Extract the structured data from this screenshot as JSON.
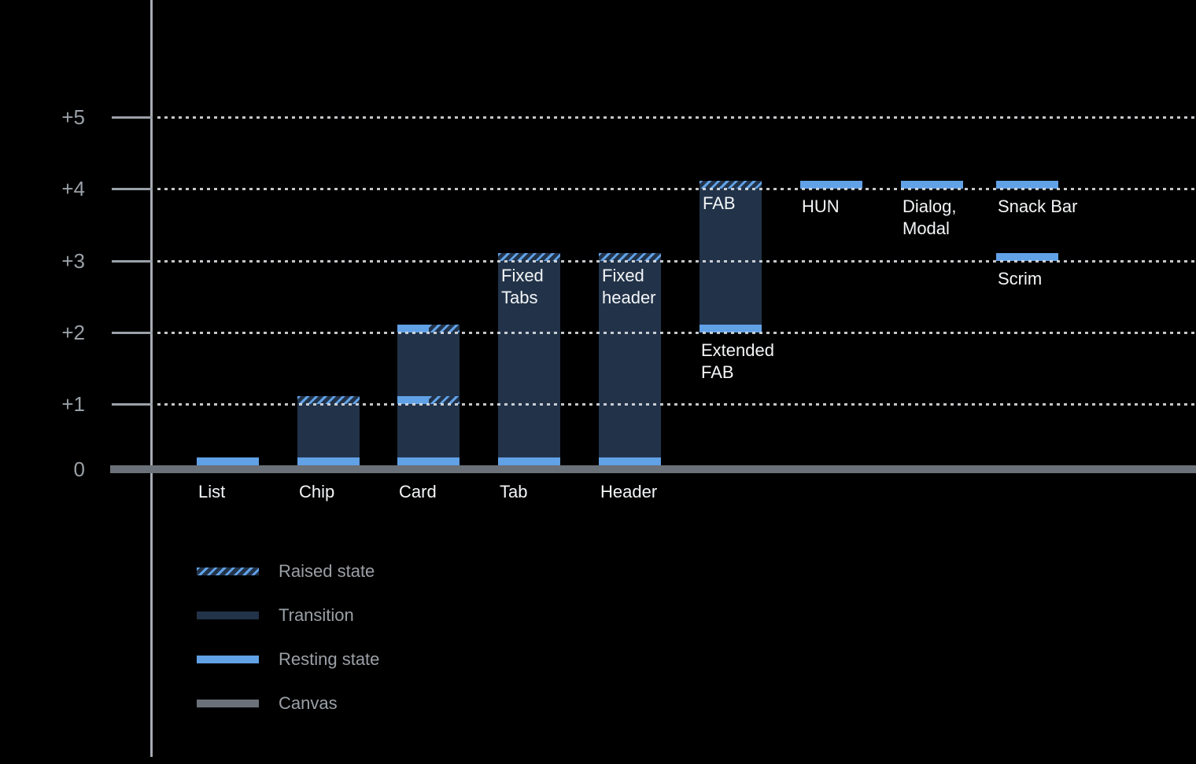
{
  "chart_data": {
    "type": "bar",
    "title": "",
    "xlabel": "",
    "ylabel": "",
    "ylim": [
      0,
      5
    ],
    "grid": "dotted horizontal gridlines at +1 through +5",
    "legend_position": "bottom-left",
    "yticks": [
      {
        "label": "+5",
        "level": 5
      },
      {
        "label": "+4",
        "level": 4
      },
      {
        "label": "+3",
        "level": 3
      },
      {
        "label": "+2",
        "level": 2
      },
      {
        "label": "+1",
        "level": 1
      },
      {
        "label": "0",
        "level": 0
      }
    ],
    "components": [
      {
        "name": "list",
        "axis_label": "List",
        "elements": [
          {
            "type": "resting",
            "level": 0
          }
        ]
      },
      {
        "name": "chip",
        "axis_label": "Chip",
        "elements": [
          {
            "type": "transition",
            "from": 0,
            "to": 1
          },
          {
            "type": "resting",
            "level": 0
          },
          {
            "type": "raised",
            "level": 1
          }
        ]
      },
      {
        "name": "card",
        "axis_label": "Card",
        "elements": [
          {
            "type": "transition",
            "from": 0,
            "to": 2
          },
          {
            "type": "resting",
            "level": 0
          },
          {
            "type": "resting_raised",
            "level": 1
          },
          {
            "type": "resting_raised",
            "level": 2
          }
        ]
      },
      {
        "name": "tab",
        "axis_label": "Tab",
        "top_label": "Fixed\nTabs",
        "elements": [
          {
            "type": "transition",
            "from": 0,
            "to": 3
          },
          {
            "type": "resting",
            "level": 0
          },
          {
            "type": "raised",
            "level": 3
          }
        ]
      },
      {
        "name": "header",
        "axis_label": "Header",
        "top_label": "Fixed\nheader",
        "elements": [
          {
            "type": "transition",
            "from": 0,
            "to": 3
          },
          {
            "type": "resting",
            "level": 0
          },
          {
            "type": "raised",
            "level": 3
          }
        ]
      },
      {
        "name": "extended-fab",
        "top_label": "FAB",
        "elements": [
          {
            "type": "transition",
            "from": 2,
            "to": 4
          },
          {
            "type": "resting",
            "level": 2,
            "label": "Extended\nFAB"
          },
          {
            "type": "raised",
            "level": 4
          }
        ]
      },
      {
        "name": "hun",
        "elements": [
          {
            "type": "resting",
            "level": 4,
            "label": "HUN"
          }
        ]
      },
      {
        "name": "dialog-modal",
        "elements": [
          {
            "type": "resting",
            "level": 4,
            "label": "Dialog,\nModal"
          }
        ]
      },
      {
        "name": "snack-bar-scrim",
        "elements": [
          {
            "type": "resting",
            "level": 4,
            "label": "Snack Bar"
          },
          {
            "type": "resting",
            "level": 3,
            "label": "Scrim"
          }
        ]
      }
    ],
    "legend": [
      {
        "label": "Raised state",
        "swatch": "raised"
      },
      {
        "label": "Transition",
        "swatch": "transition"
      },
      {
        "label": "Resting state",
        "swatch": "resting"
      },
      {
        "label": "Canvas",
        "swatch": "canvas"
      }
    ],
    "colors": {
      "background": "#000000",
      "resting": "#61a1e6",
      "transition": "#223349",
      "canvas": "#6b7178",
      "gridline": "#c9ccd0",
      "axis": "#9aa0a6",
      "label_white": "#f3f5f7",
      "label_gray": "#9aa0a6"
    }
  }
}
